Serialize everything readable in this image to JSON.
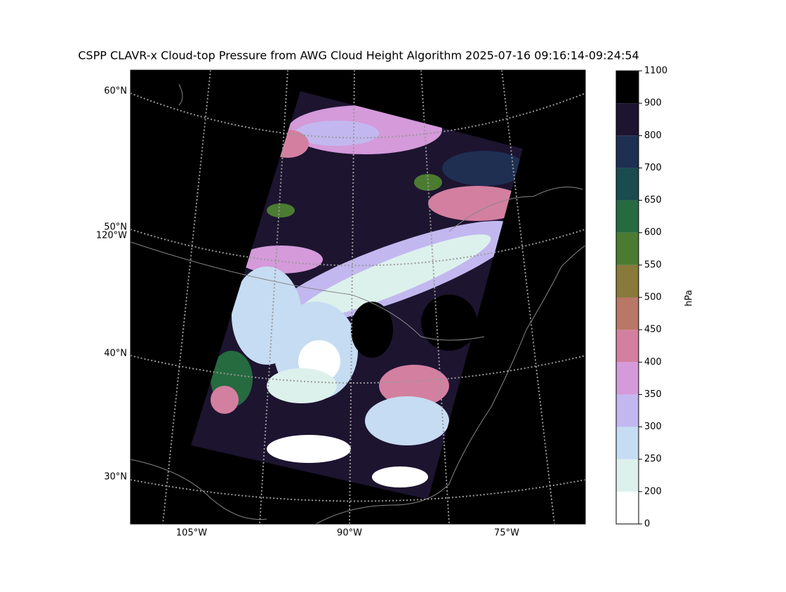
{
  "title": "CSPP CLAVR-x Cloud-top Pressure from AWG Cloud Height Algorithm 2025-07-16 09:16:14-09:24:54",
  "map": {
    "lat_labels": [
      "60°N",
      "50°N",
      "40°N",
      "30°N"
    ],
    "lon_labels_left": [
      "120°W"
    ],
    "lon_labels_bottom": [
      "105°W",
      "90°W",
      "75°W"
    ]
  },
  "colorbar": {
    "label": "hPa",
    "ticks": [
      0,
      200,
      250,
      300,
      350,
      400,
      450,
      500,
      550,
      600,
      650,
      700,
      800,
      900,
      1100
    ],
    "colors": [
      "#ffffff",
      "#ddf1ec",
      "#c6dcf2",
      "#c2b8ef",
      "#d49ada",
      "#d37fa0",
      "#b97766",
      "#877a3a",
      "#4b7b31",
      "#266a40",
      "#1a4b4f",
      "#1e2f52",
      "#1d1430",
      "#000000"
    ]
  }
}
